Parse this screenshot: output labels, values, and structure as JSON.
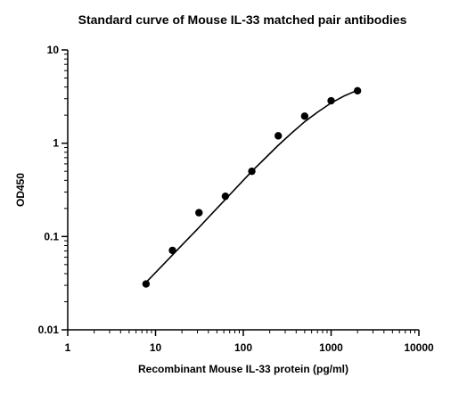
{
  "chart_data": {
    "type": "scatter",
    "title": "Standard curve of Mouse IL-33 matched pair antibodies",
    "xlabel": "Recombinant Mouse IL-33 protein (pg/ml)",
    "ylabel": "OD450",
    "xscale": "log",
    "yscale": "log",
    "xlim": [
      1,
      10000
    ],
    "ylim": [
      0.01,
      10
    ],
    "x_ticks": [
      "1",
      "10",
      "100",
      "1000",
      "10000"
    ],
    "y_ticks": [
      "0.01",
      "0.1",
      "1",
      "10"
    ],
    "grid": false,
    "legend": "none",
    "marker_color": "#000000",
    "series": [
      {
        "x": [
          7.8,
          15.6,
          31.25,
          62.5,
          125,
          250,
          500,
          1000,
          2000
        ],
        "y": [
          0.031,
          0.071,
          0.18,
          0.27,
          0.5,
          1.2,
          1.95,
          2.85,
          3.65
        ]
      }
    ],
    "fit_curve": {
      "type": "4PL",
      "x": [
        7.5,
        10,
        15,
        20,
        30,
        45,
        60,
        90,
        125,
        180,
        250,
        360,
        500,
        700,
        1000,
        1400,
        2000
      ],
      "y": [
        0.031,
        0.041,
        0.061,
        0.081,
        0.12,
        0.18,
        0.24,
        0.36,
        0.5,
        0.7,
        0.95,
        1.3,
        1.7,
        2.15,
        2.7,
        3.2,
        3.7
      ]
    }
  }
}
